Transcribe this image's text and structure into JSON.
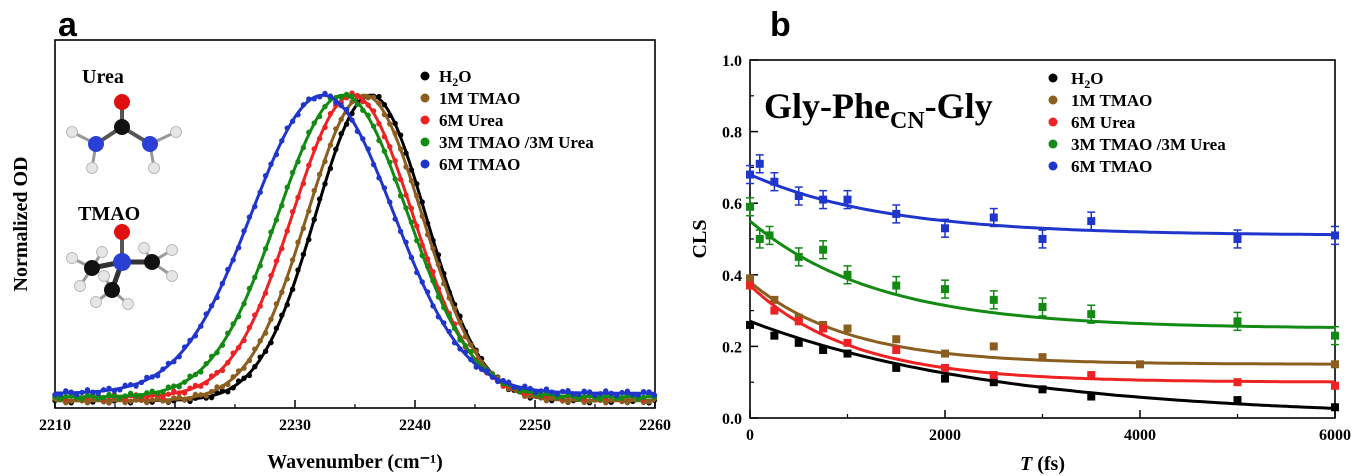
{
  "panels": {
    "a": {
      "letter": "a",
      "molecule_labels": [
        "Urea",
        "TMAO"
      ],
      "chart_data": {
        "type": "line",
        "xlabel": "Wavenumber (cm⁻¹)",
        "ylabel": "Normalized OD",
        "xlim": [
          2210,
          2260
        ],
        "xticks": [
          2210,
          2220,
          2230,
          2240,
          2250,
          2260
        ],
        "y_tick_labels": false,
        "ylim": [
          0,
          1.0
        ],
        "legend_position": "top-right",
        "series": [
          {
            "name": "H₂O",
            "color": "#000000",
            "center": 2236.3,
            "sigma": 4.6,
            "baseline": 0.02
          },
          {
            "name": "1M TMAO",
            "color": "#8b5e1f",
            "center": 2235.8,
            "sigma": 4.8,
            "baseline": 0.02
          },
          {
            "name": "6M Urea",
            "color": "#ee2222",
            "center": 2234.8,
            "sigma": 5.0,
            "baseline": 0.03
          },
          {
            "name": "3M TMAO /3M Urea",
            "color": "#138a13",
            "center": 2234.0,
            "sigma": 5.4,
            "baseline": 0.03
          },
          {
            "name": "6M TMAO",
            "color": "#1f35cc",
            "center": 2232.3,
            "sigma": 5.9,
            "baseline": 0.04
          }
        ]
      }
    },
    "b": {
      "letter": "b",
      "peptide_label": {
        "main": "Gly-Phe",
        "sub": "CN",
        "end": "-Gly"
      },
      "chart_data": {
        "type": "scatter",
        "xlabel_italic": "T",
        "xlabel_rest": " (fs)",
        "ylabel": "CLS",
        "xlim": [
          0,
          6000
        ],
        "ylim": [
          0,
          1.0
        ],
        "xticks": [
          0,
          2000,
          4000,
          6000
        ],
        "yticks": [
          "0.0",
          "0.2",
          "0.4",
          "0.6",
          "0.8",
          "1.0"
        ],
        "legend_position": "top",
        "series": [
          {
            "name": "H₂O",
            "color": "#000000",
            "x": [
              0,
              250,
              500,
              750,
              1000,
              1500,
              2000,
              2500,
              3000,
              3500,
              5000,
              6000
            ],
            "y": [
              0.26,
              0.23,
              0.21,
              0.19,
              0.18,
              0.14,
              0.11,
              0.1,
              0.08,
              0.06,
              0.05,
              0.03
            ],
            "fit": {
              "offset": 0.0,
              "amp": 0.27,
              "tau": 2600
            }
          },
          {
            "name": "1M TMAO",
            "color": "#8b5e1f",
            "x": [
              0,
              250,
              500,
              750,
              1000,
              1500,
              2000,
              2500,
              3000,
              4000,
              6000
            ],
            "y": [
              0.39,
              0.33,
              0.28,
              0.26,
              0.25,
              0.22,
              0.18,
              0.2,
              0.17,
              0.15,
              0.15
            ],
            "fit": {
              "offset": 0.15,
              "amp": 0.23,
              "tau": 1000
            }
          },
          {
            "name": "6M Urea",
            "color": "#ee2222",
            "x": [
              0,
              250,
              500,
              750,
              1000,
              1500,
              2000,
              2500,
              3500,
              5000,
              6000
            ],
            "y": [
              0.37,
              0.3,
              0.27,
              0.25,
              0.21,
              0.19,
              0.14,
              0.12,
              0.12,
              0.1,
              0.09
            ],
            "fit": {
              "offset": 0.1,
              "amp": 0.27,
              "tau": 1050
            }
          },
          {
            "name": "3M TMAO /3M Urea",
            "color": "#138a13",
            "x": [
              0,
              100,
              200,
              500,
              750,
              1000,
              1500,
              2000,
              2500,
              3000,
              3500,
              5000,
              6000
            ],
            "y": [
              0.59,
              0.5,
              0.51,
              0.45,
              0.47,
              0.4,
              0.37,
              0.36,
              0.33,
              0.31,
              0.29,
              0.27,
              0.23
            ],
            "fit": {
              "offset": 0.25,
              "amp": 0.3,
              "tau": 1300
            }
          },
          {
            "name": "6M TMAO",
            "color": "#1f35cc",
            "x": [
              0,
              100,
              250,
              500,
              750,
              1000,
              1500,
              2000,
              2500,
              3000,
              3500,
              5000,
              6000
            ],
            "y": [
              0.68,
              0.71,
              0.66,
              0.62,
              0.61,
              0.61,
              0.57,
              0.53,
              0.56,
              0.5,
              0.55,
              0.5,
              0.51
            ],
            "fit": {
              "offset": 0.51,
              "amp": 0.17,
              "tau": 1400
            }
          }
        ]
      }
    }
  }
}
